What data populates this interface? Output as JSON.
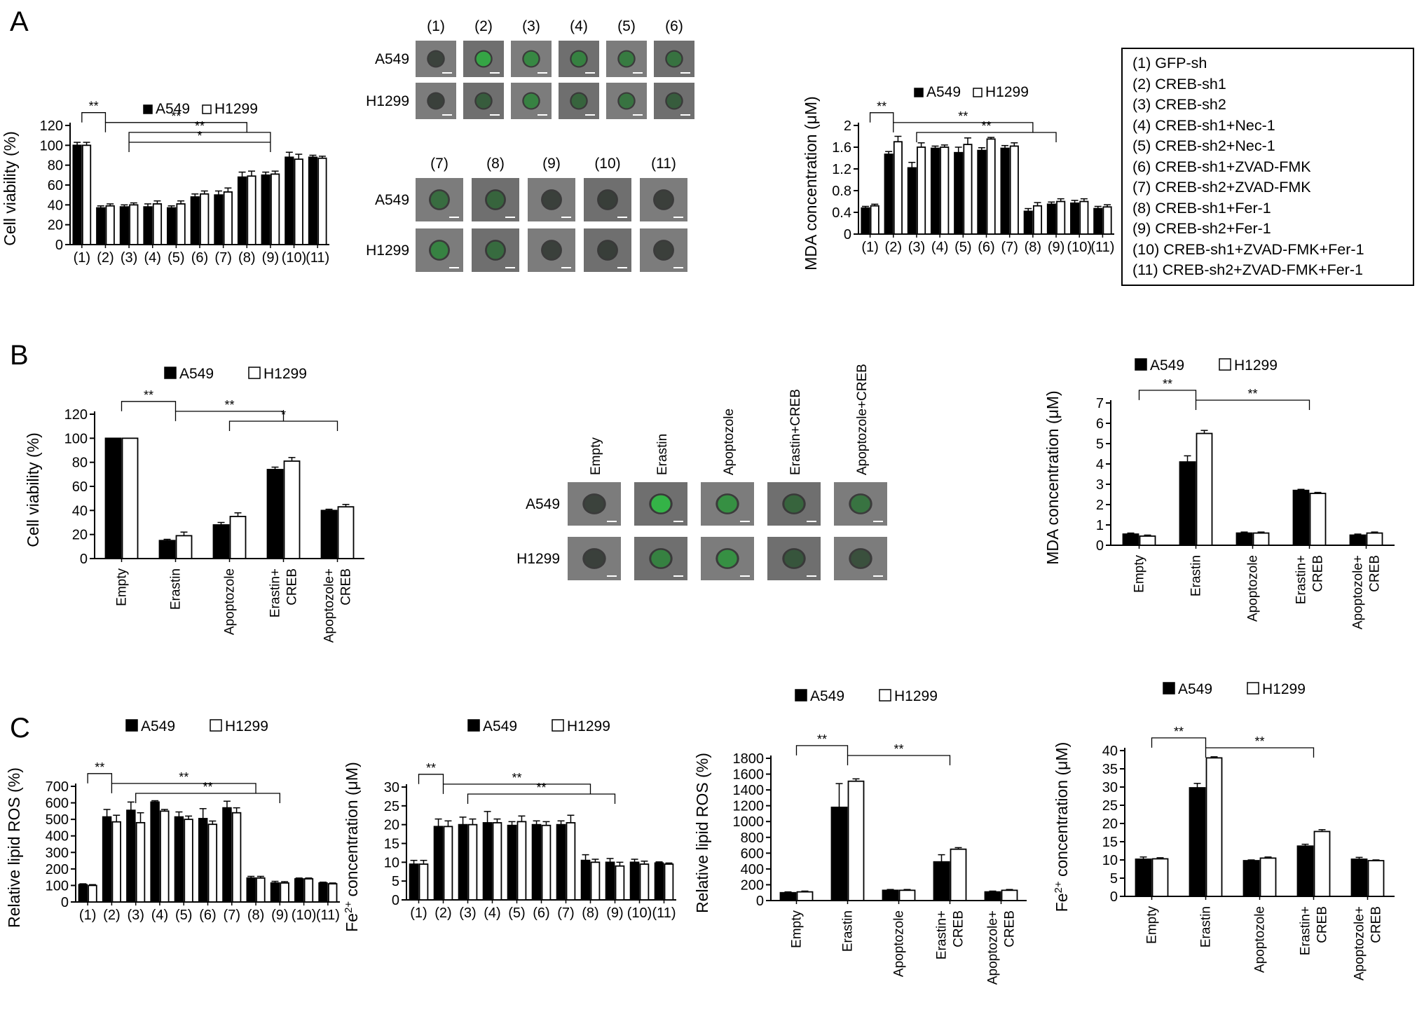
{
  "panels": [
    {
      "id": "A",
      "label": "A"
    },
    {
      "id": "B",
      "label": "B"
    },
    {
      "id": "C",
      "label": "C"
    }
  ],
  "series_names": [
    "A549",
    "H1299"
  ],
  "micrograph_rows": [
    "A549",
    "H1299"
  ],
  "group_legend": [
    "(1) GFP-sh",
    "(2) CREB-sh1",
    "(3) CREB-sh2",
    "(4) CREB-sh1+Nec-1",
    "(5) CREB-sh2+Nec-1",
    "(6) CREB-sh1+ZVAD-FMK",
    "(7) CREB-sh2+ZVAD-FMK",
    "(8) CREB-sh1+Fer-1",
    "(9) CREB-sh2+Fer-1",
    "(10) CREB-sh1+ZVAD-FMK+Fer-1",
    "(11) CREB-sh2+ZVAD-FMK+Fer-1"
  ],
  "micrographs": [
    {
      "id": "A-top",
      "columns": [
        "(1)",
        "(2)",
        "(3)",
        "(4)",
        "(5)",
        "(6)"
      ],
      "rows": [
        "A549",
        "H1299"
      ],
      "cells": [
        [
          0.05,
          0.75,
          0.55,
          0.5,
          0.45,
          0.4
        ],
        [
          0.04,
          0.25,
          0.5,
          0.3,
          0.4,
          0.25
        ]
      ]
    },
    {
      "id": "A-bottom",
      "columns": [
        "(7)",
        "(8)",
        "(9)",
        "(10)",
        "(11)"
      ],
      "rows": [
        "A549",
        "H1299"
      ],
      "cells": [
        [
          0.35,
          0.3,
          0.04,
          0.04,
          0.03
        ],
        [
          0.5,
          0.35,
          0.04,
          0.04,
          0.03
        ]
      ]
    },
    {
      "id": "B",
      "columns": [
        "Empty",
        "Erastin",
        "Apoptozole",
        "Erastin+CREB",
        "Apoptozole+CREB"
      ],
      "rows": [
        "A549",
        "H1299"
      ],
      "cells": [
        [
          0.05,
          0.85,
          0.6,
          0.3,
          0.4
        ],
        [
          0.04,
          0.5,
          0.6,
          0.2,
          0.15
        ]
      ]
    }
  ],
  "chart_data": [
    {
      "id": "A-viability",
      "type": "bar",
      "ylabel": "Cell viability (%)",
      "ylim": [
        0,
        120
      ],
      "yticks": [
        0,
        20,
        40,
        60,
        80,
        100,
        120
      ],
      "categories": [
        "(1)",
        "(2)",
        "(3)",
        "(4)",
        "(5)",
        "(6)",
        "(7)",
        "(8)",
        "(9)",
        "(10)",
        "(11)"
      ],
      "series": [
        {
          "name": "A549",
          "values": [
            100,
            37,
            38,
            38,
            37,
            48,
            50,
            68,
            70,
            88,
            88
          ],
          "errors": [
            3,
            2,
            2,
            3,
            2,
            3,
            4,
            5,
            3,
            5,
            2
          ]
        },
        {
          "name": "H1299",
          "values": [
            100,
            39,
            40,
            41,
            41,
            51,
            53,
            69,
            71,
            86,
            87
          ],
          "errors": [
            3,
            2,
            2,
            3,
            3,
            3,
            4,
            5,
            3,
            5,
            2
          ]
        }
      ],
      "annotations": [
        "**",
        "**",
        "**",
        "*"
      ]
    },
    {
      "id": "A-MDA",
      "type": "bar",
      "ylabel": "MDA concentration (μM)",
      "ylim": [
        0,
        2
      ],
      "yticks": [
        "0",
        "0.4",
        "0.8",
        "1.2",
        "1.6",
        "2"
      ],
      "categories": [
        "(1)",
        "(2)",
        "(3)",
        "(4)",
        "(5)",
        "(6)",
        "(7)",
        "(8)",
        "(9)",
        "(10)",
        "(11)"
      ],
      "series": [
        {
          "name": "A549",
          "values": [
            0.48,
            1.47,
            1.22,
            1.58,
            1.5,
            1.54,
            1.58,
            0.42,
            0.55,
            0.57,
            0.47
          ],
          "errors": [
            0.03,
            0.05,
            0.1,
            0.04,
            0.1,
            0.05,
            0.05,
            0.05,
            0.04,
            0.05,
            0.04
          ]
        },
        {
          "name": "H1299",
          "values": [
            0.52,
            1.7,
            1.6,
            1.6,
            1.65,
            1.75,
            1.62,
            0.52,
            0.6,
            0.6,
            0.5
          ],
          "errors": [
            0.03,
            0.1,
            0.08,
            0.04,
            0.12,
            0.03,
            0.06,
            0.06,
            0.05,
            0.05,
            0.04
          ]
        }
      ],
      "annotations": [
        "**",
        "**",
        "**"
      ]
    },
    {
      "id": "B-viability",
      "type": "bar",
      "ylabel": "Cell viability (%)",
      "ylim": [
        0,
        120
      ],
      "yticks": [
        0,
        20,
        40,
        60,
        80,
        100,
        120
      ],
      "categories": [
        "Empty",
        "Erastin",
        "Apoptozole",
        "Erastin+\nCREB",
        "Apoptozole+\nCREB"
      ],
      "series": [
        {
          "name": "A549",
          "values": [
            100,
            15,
            28,
            74,
            40
          ],
          "errors": [
            0,
            1,
            2,
            2,
            1
          ]
        },
        {
          "name": "H1299",
          "values": [
            100,
            19,
            35,
            81,
            43
          ],
          "errors": [
            0,
            3,
            3,
            3,
            2
          ]
        }
      ],
      "annotations": [
        "**",
        "**",
        "*"
      ]
    },
    {
      "id": "B-MDA",
      "type": "bar",
      "ylabel": "MDA concentration (μM)",
      "ylim": [
        0,
        7
      ],
      "yticks": [
        0,
        1,
        2,
        3,
        4,
        5,
        6,
        7
      ],
      "categories": [
        "Empty",
        "Erastin",
        "Apoptozole",
        "Erastin+\nCREB",
        "Apoptozole+\nCREB"
      ],
      "series": [
        {
          "name": "A549",
          "values": [
            0.55,
            4.1,
            0.6,
            2.7,
            0.5
          ],
          "errors": [
            0.05,
            0.3,
            0.05,
            0.05,
            0.05
          ]
        },
        {
          "name": "H1299",
          "values": [
            0.45,
            5.5,
            0.6,
            2.55,
            0.6
          ],
          "errors": [
            0.05,
            0.15,
            0.05,
            0.05,
            0.05
          ]
        }
      ],
      "annotations": [
        "**",
        "**"
      ]
    },
    {
      "id": "C-ROS-groups",
      "type": "bar",
      "ylabel": "Relative lipid ROS (%)",
      "ylim": [
        0,
        700
      ],
      "yticks": [
        0,
        100,
        200,
        300,
        400,
        500,
        600,
        700
      ],
      "categories": [
        "(1)",
        "(2)",
        "(3)",
        "(4)",
        "(5)",
        "(6)",
        "(7)",
        "(8)",
        "(9)",
        "(10)",
        "(11)"
      ],
      "series": [
        {
          "name": "A549",
          "values": [
            105,
            515,
            555,
            605,
            515,
            505,
            570,
            145,
            115,
            140,
            115
          ],
          "errors": [
            5,
            45,
            50,
            8,
            30,
            60,
            40,
            10,
            10,
            5,
            5
          ]
        },
        {
          "name": "H1299",
          "values": [
            100,
            485,
            480,
            550,
            500,
            470,
            540,
            145,
            115,
            140,
            110
          ],
          "errors": [
            5,
            40,
            60,
            10,
            20,
            20,
            30,
            10,
            8,
            5,
            5
          ]
        }
      ],
      "annotations": [
        "**",
        "**",
        "**"
      ]
    },
    {
      "id": "C-Fe-groups",
      "type": "bar",
      "ylabel": "Fe2+ concentration (μM)",
      "ylim": [
        0,
        30
      ],
      "yticks": [
        0,
        5,
        10,
        15,
        20,
        25,
        30
      ],
      "categories": [
        "(1)",
        "(2)",
        "(3)",
        "(4)",
        "(5)",
        "(6)",
        "(7)",
        "(8)",
        "(9)",
        "(10)",
        "(11)"
      ],
      "series": [
        {
          "name": "A549",
          "values": [
            9.5,
            19.5,
            20,
            20.5,
            19.8,
            20,
            20,
            10.5,
            10,
            10,
            9.8
          ],
          "errors": [
            1,
            2,
            2,
            3,
            1,
            1,
            1,
            1.5,
            1,
            0.8,
            0.3
          ]
        },
        {
          "name": "H1299",
          "values": [
            9.5,
            19.5,
            20,
            20.5,
            20.8,
            19.8,
            20.5,
            10,
            9,
            9.5,
            9.5
          ],
          "errors": [
            1,
            1.5,
            1.5,
            1,
            1.5,
            1,
            2,
            0.8,
            1,
            0.8,
            0.3
          ]
        }
      ],
      "annotations": [
        "**",
        "**",
        "**"
      ]
    },
    {
      "id": "C-ROS-treat",
      "type": "bar",
      "ylabel": "Relative lipid ROS (%)",
      "ylim": [
        0,
        1800
      ],
      "yticks": [
        0,
        200,
        400,
        600,
        800,
        1000,
        1200,
        1400,
        1600,
        1800
      ],
      "categories": [
        "Empty",
        "Erastin",
        "Apoptozole",
        "Erastin+\nCREB",
        "Apoptozole+\nCREB"
      ],
      "series": [
        {
          "name": "A549",
          "values": [
            100,
            1180,
            130,
            490,
            110
          ],
          "errors": [
            10,
            300,
            10,
            90,
            10
          ]
        },
        {
          "name": "H1299",
          "values": [
            110,
            1510,
            130,
            650,
            130
          ],
          "errors": [
            10,
            30,
            10,
            20,
            10
          ]
        }
      ],
      "annotations": [
        "**",
        "**"
      ]
    },
    {
      "id": "C-Fe-treat",
      "type": "bar",
      "ylabel": "Fe2+ concentration (μM)",
      "ylim": [
        0,
        40
      ],
      "yticks": [
        0,
        5,
        10,
        15,
        20,
        25,
        30,
        35,
        40
      ],
      "categories": [
        "Empty",
        "Erastin",
        "Apoptozole",
        "Erastin+\nCREB",
        "Apoptozole+\nCREB"
      ],
      "series": [
        {
          "name": "A549",
          "values": [
            10.2,
            29.8,
            9.8,
            13.8,
            10.2
          ],
          "errors": [
            0.6,
            1.2,
            0.2,
            0.5,
            0.5
          ]
        },
        {
          "name": "H1299",
          "values": [
            10.3,
            38,
            10.5,
            17.8,
            9.8
          ],
          "errors": [
            0.3,
            0.3,
            0.3,
            0.5,
            0.2
          ]
        }
      ],
      "annotations": [
        "**",
        "**"
      ]
    }
  ]
}
